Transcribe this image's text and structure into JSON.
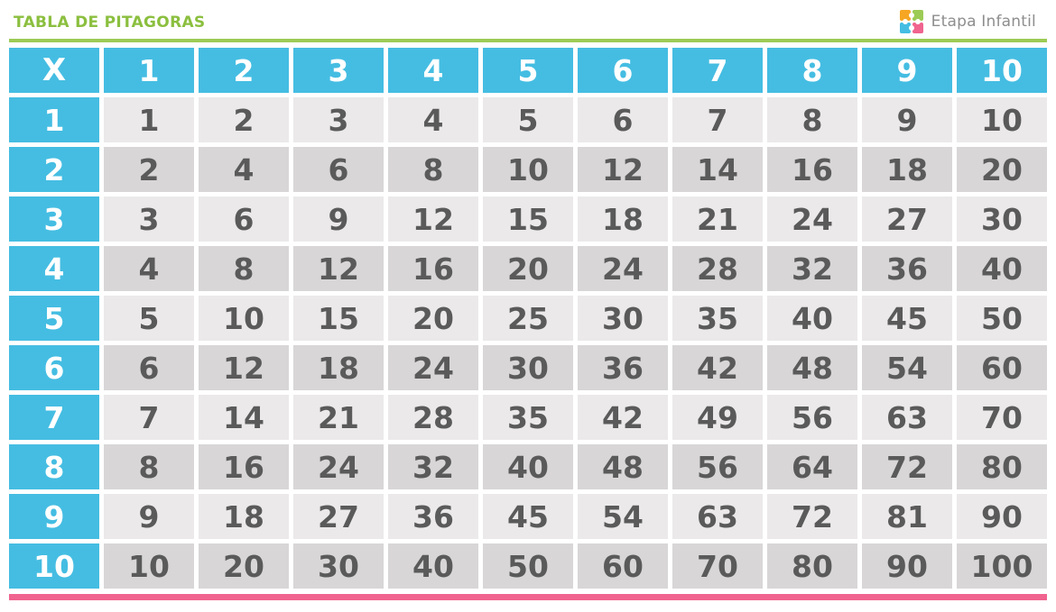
{
  "header": {
    "title": "TABLA DE PITAGORAS",
    "brand": "Etapa Infantil",
    "logo_colors": [
      "#f6a623",
      "#9ccb55",
      "#45bde2",
      "#f0648f"
    ]
  },
  "colors": {
    "accent_line_top": "#9ccb55",
    "accent_line_bottom": "#f0648f",
    "header_cell": "#45bde2",
    "row_light": "#ebe9ea",
    "row_dark": "#d8d6d7",
    "number_text": "#5a5a5a",
    "title_text": "#8bbf3f"
  },
  "table": {
    "corner": "X",
    "columns": [
      "1",
      "2",
      "3",
      "4",
      "5",
      "6",
      "7",
      "8",
      "9",
      "10"
    ],
    "rows": [
      {
        "label": "1",
        "cells": [
          "1",
          "2",
          "3",
          "4",
          "5",
          "6",
          "7",
          "8",
          "9",
          "10"
        ]
      },
      {
        "label": "2",
        "cells": [
          "2",
          "4",
          "6",
          "8",
          "10",
          "12",
          "14",
          "16",
          "18",
          "20"
        ]
      },
      {
        "label": "3",
        "cells": [
          "3",
          "6",
          "9",
          "12",
          "15",
          "18",
          "21",
          "24",
          "27",
          "30"
        ]
      },
      {
        "label": "4",
        "cells": [
          "4",
          "8",
          "12",
          "16",
          "20",
          "24",
          "28",
          "32",
          "36",
          "40"
        ]
      },
      {
        "label": "5",
        "cells": [
          "5",
          "10",
          "15",
          "20",
          "25",
          "30",
          "35",
          "40",
          "45",
          "50"
        ]
      },
      {
        "label": "6",
        "cells": [
          "6",
          "12",
          "18",
          "24",
          "30",
          "36",
          "42",
          "48",
          "54",
          "60"
        ]
      },
      {
        "label": "7",
        "cells": [
          "7",
          "14",
          "21",
          "28",
          "35",
          "42",
          "49",
          "56",
          "63",
          "70"
        ]
      },
      {
        "label": "8",
        "cells": [
          "8",
          "16",
          "24",
          "32",
          "40",
          "48",
          "56",
          "64",
          "72",
          "80"
        ]
      },
      {
        "label": "9",
        "cells": [
          "9",
          "18",
          "27",
          "36",
          "45",
          "54",
          "63",
          "72",
          "81",
          "90"
        ]
      },
      {
        "label": "10",
        "cells": [
          "10",
          "20",
          "30",
          "40",
          "50",
          "60",
          "70",
          "80",
          "90",
          "100"
        ]
      }
    ]
  }
}
